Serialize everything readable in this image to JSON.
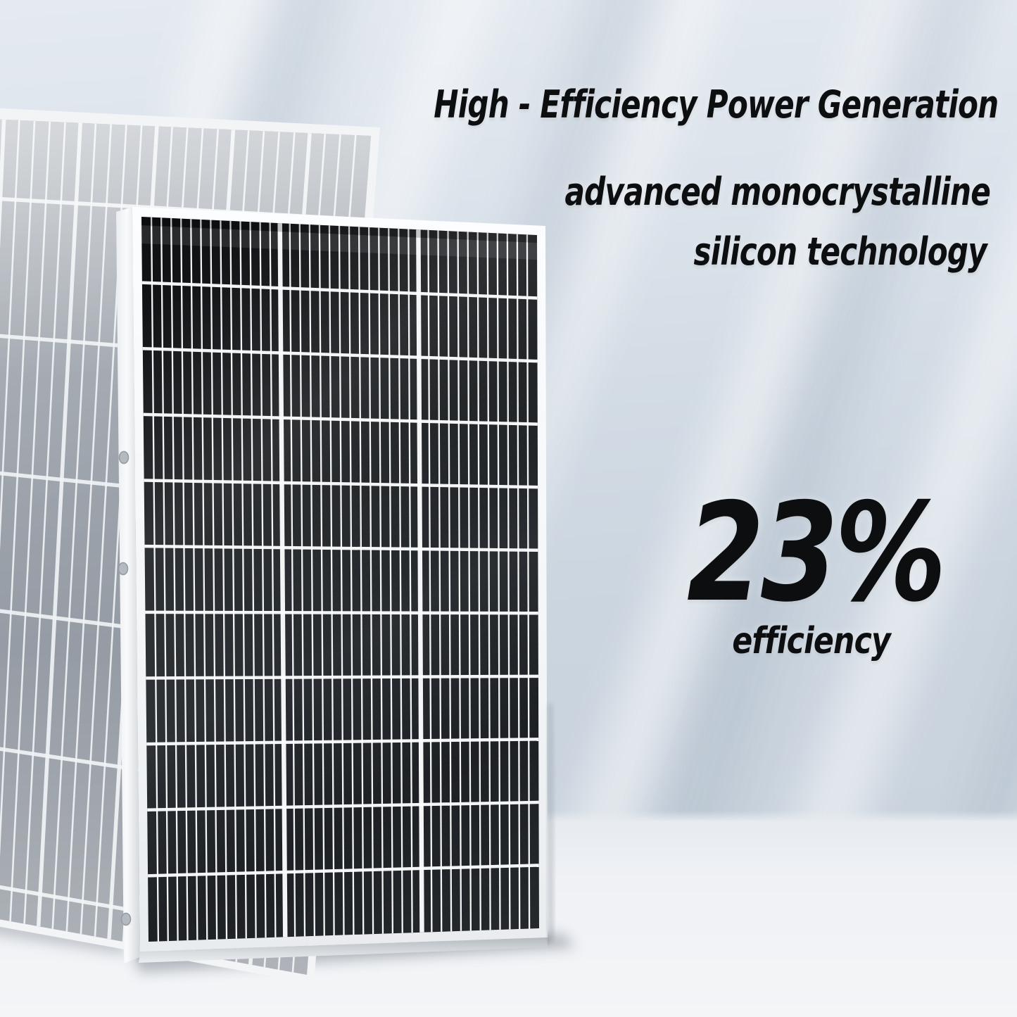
{
  "headline": {
    "line1": "High - Efficiency Power Generation",
    "line2": "advanced monocrystalline",
    "line3": "silicon technology"
  },
  "stat": {
    "value": "23%",
    "label": "efficiency"
  },
  "colors": {
    "text": "#0d0e10",
    "wall": "#cfd8e2",
    "floor": "#f0f2f5",
    "front_panel_cell": "#1d2023",
    "back_panel_cell": "#959ba4",
    "panel_frame": "#f4f6f8",
    "panel_grid_line": "#fbfcfd"
  },
  "scene": {
    "front_panel": "dark monocrystalline solar panel",
    "back_panel": "light gray solar panel behind"
  }
}
